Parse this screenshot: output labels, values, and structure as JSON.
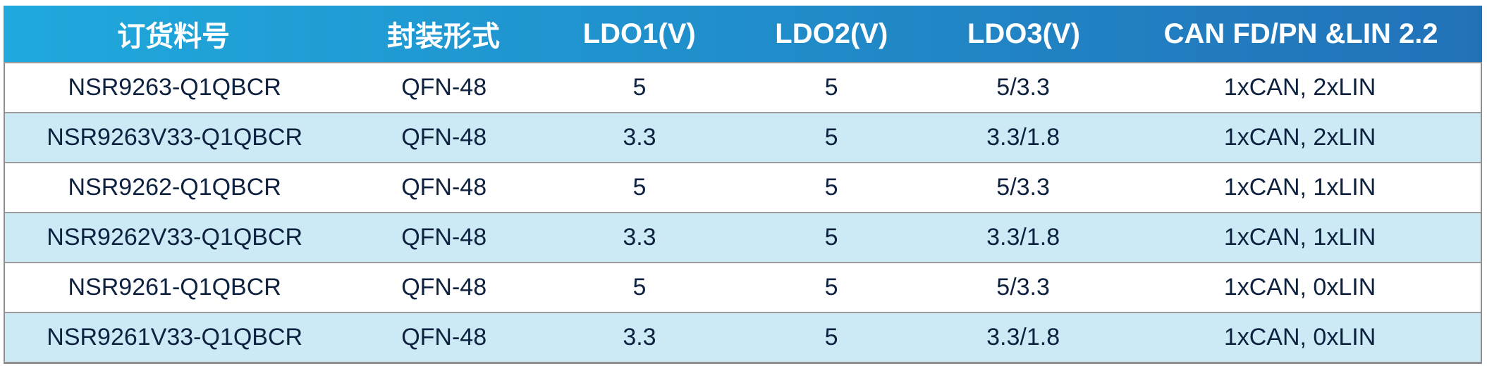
{
  "table": {
    "title": "ordering-information-table",
    "columns": [
      "订货料号",
      "封装形式",
      "LDO1(V)",
      "LDO2(V)",
      "LDO3(V)",
      "CAN FD/PN &LIN 2.2"
    ],
    "rows": [
      [
        "NSR9263-Q1QBCR",
        "QFN-48",
        "5",
        "5",
        "5/3.3",
        "1xCAN, 2xLIN"
      ],
      [
        "NSR9263V33-Q1QBCR",
        "QFN-48",
        "3.3",
        "5",
        "3.3/1.8",
        "1xCAN, 2xLIN"
      ],
      [
        "NSR9262-Q1QBCR",
        "QFN-48",
        "5",
        "5",
        "5/3.3",
        "1xCAN, 1xLIN"
      ],
      [
        "NSR9262V33-Q1QBCR",
        "QFN-48",
        "3.3",
        "5",
        "3.3/1.8",
        "1xCAN, 1xLIN"
      ],
      [
        "NSR9261-Q1QBCR",
        "QFN-48",
        "5",
        "5",
        "5/3.3",
        "1xCAN, 0xLIN"
      ],
      [
        "NSR9261V33-Q1QBCR",
        "QFN-48",
        "3.3",
        "5",
        "3.3/1.8",
        "1xCAN, 0xLIN"
      ]
    ]
  },
  "colors": {
    "header_gradient_start": "#1FA9DC",
    "header_gradient_end": "#2272B8",
    "stripe_row": "#CBEAF5",
    "white_row": "#FFFFFF",
    "body_text": "#0E2240",
    "header_text": "#FFFFFF",
    "outer_border": "#8F8F8F",
    "row_separator": "#9C9C9C"
  }
}
